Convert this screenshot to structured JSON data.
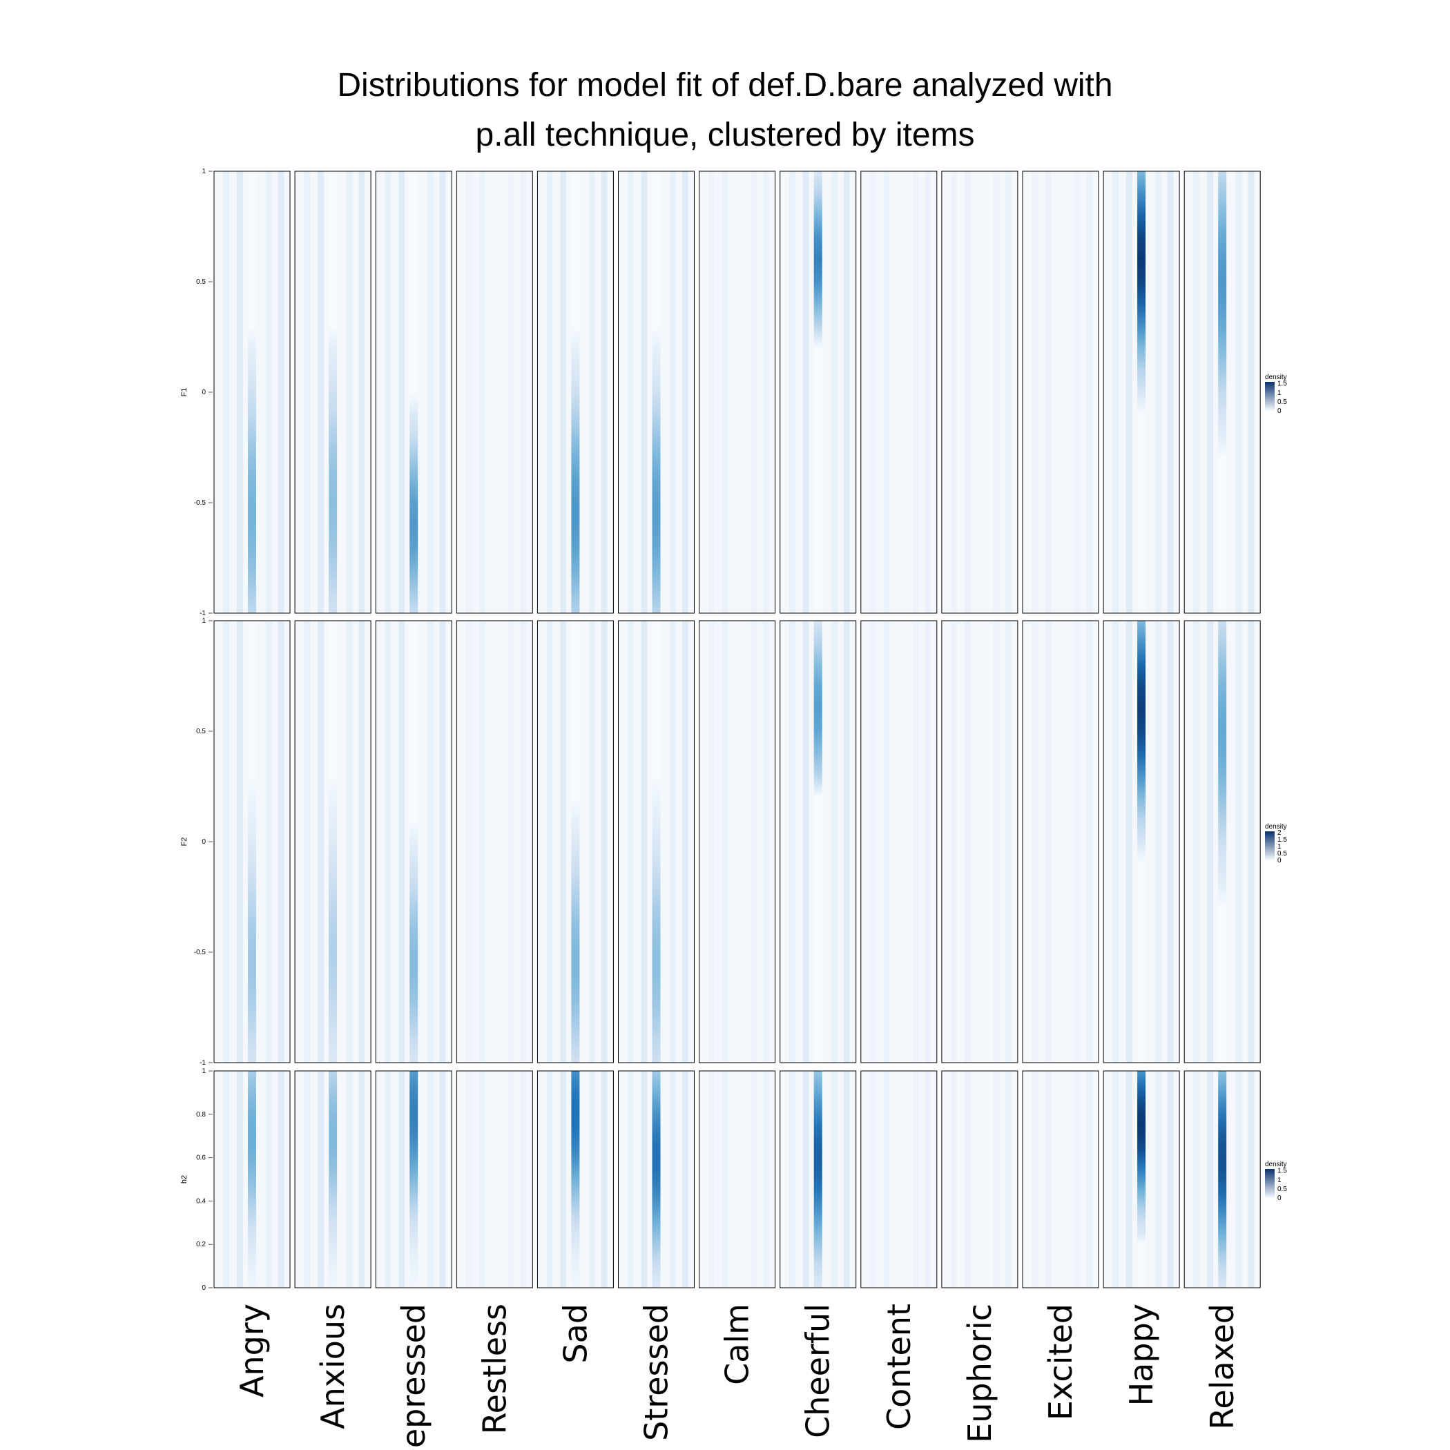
{
  "title": {
    "line1": "Distributions for model fit of def.D.bare analyzed with",
    "line2": "p.all technique, clustered by items"
  },
  "chart_data": {
    "type": "heatmap",
    "items": [
      "Angry",
      "Anxious",
      "Depressed",
      "Restless",
      "Sad",
      "Stressed",
      "Calm",
      "Cheerful",
      "Content",
      "Euphoric",
      "Excited",
      "Happy",
      "Relaxed"
    ],
    "colors": {
      "low": "#f7fbff",
      "high": "#08306b",
      "border": "#000000"
    },
    "panels": [
      {
        "ylabel": "F1",
        "ylim": [
          -1,
          1
        ],
        "yticks": [
          -1,
          -0.5,
          0,
          0.5,
          1
        ],
        "ytick_labels": [
          "-1",
          "-0.5",
          "0",
          "0.5",
          "1"
        ],
        "legend": {
          "title": "density",
          "max": 1.6,
          "ticks": [
            0,
            0.5,
            1,
            1.5
          ],
          "tick_labels": [
            "0",
            "0.5",
            "1",
            "1.5"
          ]
        },
        "peaks": [
          {
            "item": "Angry",
            "range": [
              -1,
              0.3
            ],
            "center": -0.55,
            "max": 0.75
          },
          {
            "item": "Anxious",
            "range": [
              -1,
              0.3
            ],
            "center": -0.5,
            "max": 0.65
          },
          {
            "item": "Depressed",
            "range": [
              -1,
              -0.1
            ],
            "center": -0.6,
            "max": 0.95
          },
          {
            "item": "Restless",
            "range": [
              0,
              0
            ],
            "center": 0,
            "max": 0
          },
          {
            "item": "Sad",
            "range": [
              -1,
              0.2
            ],
            "center": -0.55,
            "max": 0.95
          },
          {
            "item": "Stressed",
            "range": [
              -1,
              0.2
            ],
            "center": -0.55,
            "max": 0.9
          },
          {
            "item": "Calm",
            "range": [
              0,
              0
            ],
            "center": 0,
            "max": 0
          },
          {
            "item": "Cheerful",
            "range": [
              0.3,
              1
            ],
            "center": 0.6,
            "max": 1.1
          },
          {
            "item": "Content",
            "range": [
              0,
              0
            ],
            "center": 0,
            "max": 0
          },
          {
            "item": "Euphoric",
            "range": [
              0,
              0
            ],
            "center": 0,
            "max": 0
          },
          {
            "item": "Excited",
            "range": [
              0,
              0
            ],
            "center": 0,
            "max": 0
          },
          {
            "item": "Happy",
            "range": [
              0,
              1
            ],
            "center": 0.6,
            "max": 1.55
          },
          {
            "item": "Relaxed",
            "range": [
              -0.2,
              1
            ],
            "center": 0.5,
            "max": 0.95
          }
        ]
      },
      {
        "ylabel": "F2",
        "ylim": [
          -1,
          1
        ],
        "yticks": [
          -1,
          -0.5,
          0,
          0.5,
          1
        ],
        "ytick_labels": [
          "-1",
          "-0.5",
          "0",
          "0.5",
          "1"
        ],
        "legend": {
          "title": "density",
          "max": 2.1,
          "ticks": [
            0,
            0.5,
            1,
            1.5,
            2
          ],
          "tick_labels": [
            "0",
            "0.5",
            "1",
            "1.5",
            "2"
          ]
        },
        "peaks": [
          {
            "item": "Angry",
            "range": [
              -1,
              0.2
            ],
            "center": -0.55,
            "max": 0.75
          },
          {
            "item": "Anxious",
            "range": [
              -1,
              0.2
            ],
            "center": -0.5,
            "max": 0.65
          },
          {
            "item": "Depressed",
            "range": [
              -1,
              0.0
            ],
            "center": -0.55,
            "max": 0.9
          },
          {
            "item": "Restless",
            "range": [
              0,
              0
            ],
            "center": 0,
            "max": 0
          },
          {
            "item": "Sad",
            "range": [
              -1,
              0.1
            ],
            "center": -0.55,
            "max": 0.95
          },
          {
            "item": "Stressed",
            "range": [
              -1,
              0.2
            ],
            "center": -0.55,
            "max": 0.85
          },
          {
            "item": "Calm",
            "range": [
              0,
              0
            ],
            "center": 0,
            "max": 0
          },
          {
            "item": "Cheerful",
            "range": [
              0.2,
              1
            ],
            "center": 0.6,
            "max": 1.2
          },
          {
            "item": "Content",
            "range": [
              0,
              0
            ],
            "center": 0,
            "max": 0
          },
          {
            "item": "Euphoric",
            "range": [
              0,
              0
            ],
            "center": 0,
            "max": 0
          },
          {
            "item": "Excited",
            "range": [
              0,
              0
            ],
            "center": 0,
            "max": 0
          },
          {
            "item": "Happy",
            "range": [
              0,
              1
            ],
            "center": 0.6,
            "max": 2.0
          },
          {
            "item": "Relaxed",
            "range": [
              -0.2,
              1
            ],
            "center": 0.5,
            "max": 1.1
          }
        ]
      },
      {
        "ylabel": "h2",
        "ylim": [
          0,
          1
        ],
        "yticks": [
          0,
          0.2,
          0.4,
          0.6,
          0.8,
          1
        ],
        "ytick_labels": [
          "0",
          "0.2",
          "0.4",
          "0.6",
          "0.8",
          "1"
        ],
        "legend": {
          "title": "density",
          "max": 1.6,
          "ticks": [
            0,
            0.5,
            1,
            1.5
          ],
          "tick_labels": [
            "0",
            "0.5",
            "1",
            "1.5"
          ]
        },
        "peaks": [
          {
            "item": "Angry",
            "range": [
              0,
              1
            ],
            "center": 0.7,
            "max": 0.8
          },
          {
            "item": "Anxious",
            "range": [
              0,
              1
            ],
            "center": 0.7,
            "max": 0.7
          },
          {
            "item": "Depressed",
            "range": [
              0,
              1
            ],
            "center": 0.8,
            "max": 1.1
          },
          {
            "item": "Restless",
            "range": [
              0,
              0
            ],
            "center": 0,
            "max": 0
          },
          {
            "item": "Sad",
            "range": [
              0,
              1
            ],
            "center": 0.8,
            "max": 1.2
          },
          {
            "item": "Stressed",
            "range": [
              0,
              1
            ],
            "center": 0.6,
            "max": 1.2
          },
          {
            "item": "Calm",
            "range": [
              0,
              0
            ],
            "center": 0,
            "max": 0
          },
          {
            "item": "Cheerful",
            "range": [
              0,
              1
            ],
            "center": 0.6,
            "max": 1.3
          },
          {
            "item": "Content",
            "range": [
              0,
              0
            ],
            "center": 0,
            "max": 0
          },
          {
            "item": "Euphoric",
            "range": [
              0,
              0
            ],
            "center": 0,
            "max": 0
          },
          {
            "item": "Excited",
            "range": [
              0,
              0
            ],
            "center": 0,
            "max": 0
          },
          {
            "item": "Happy",
            "range": [
              0.2,
              1
            ],
            "center": 0.75,
            "max": 1.55
          },
          {
            "item": "Relaxed",
            "range": [
              0,
              1
            ],
            "center": 0.6,
            "max": 1.4
          }
        ]
      }
    ]
  }
}
